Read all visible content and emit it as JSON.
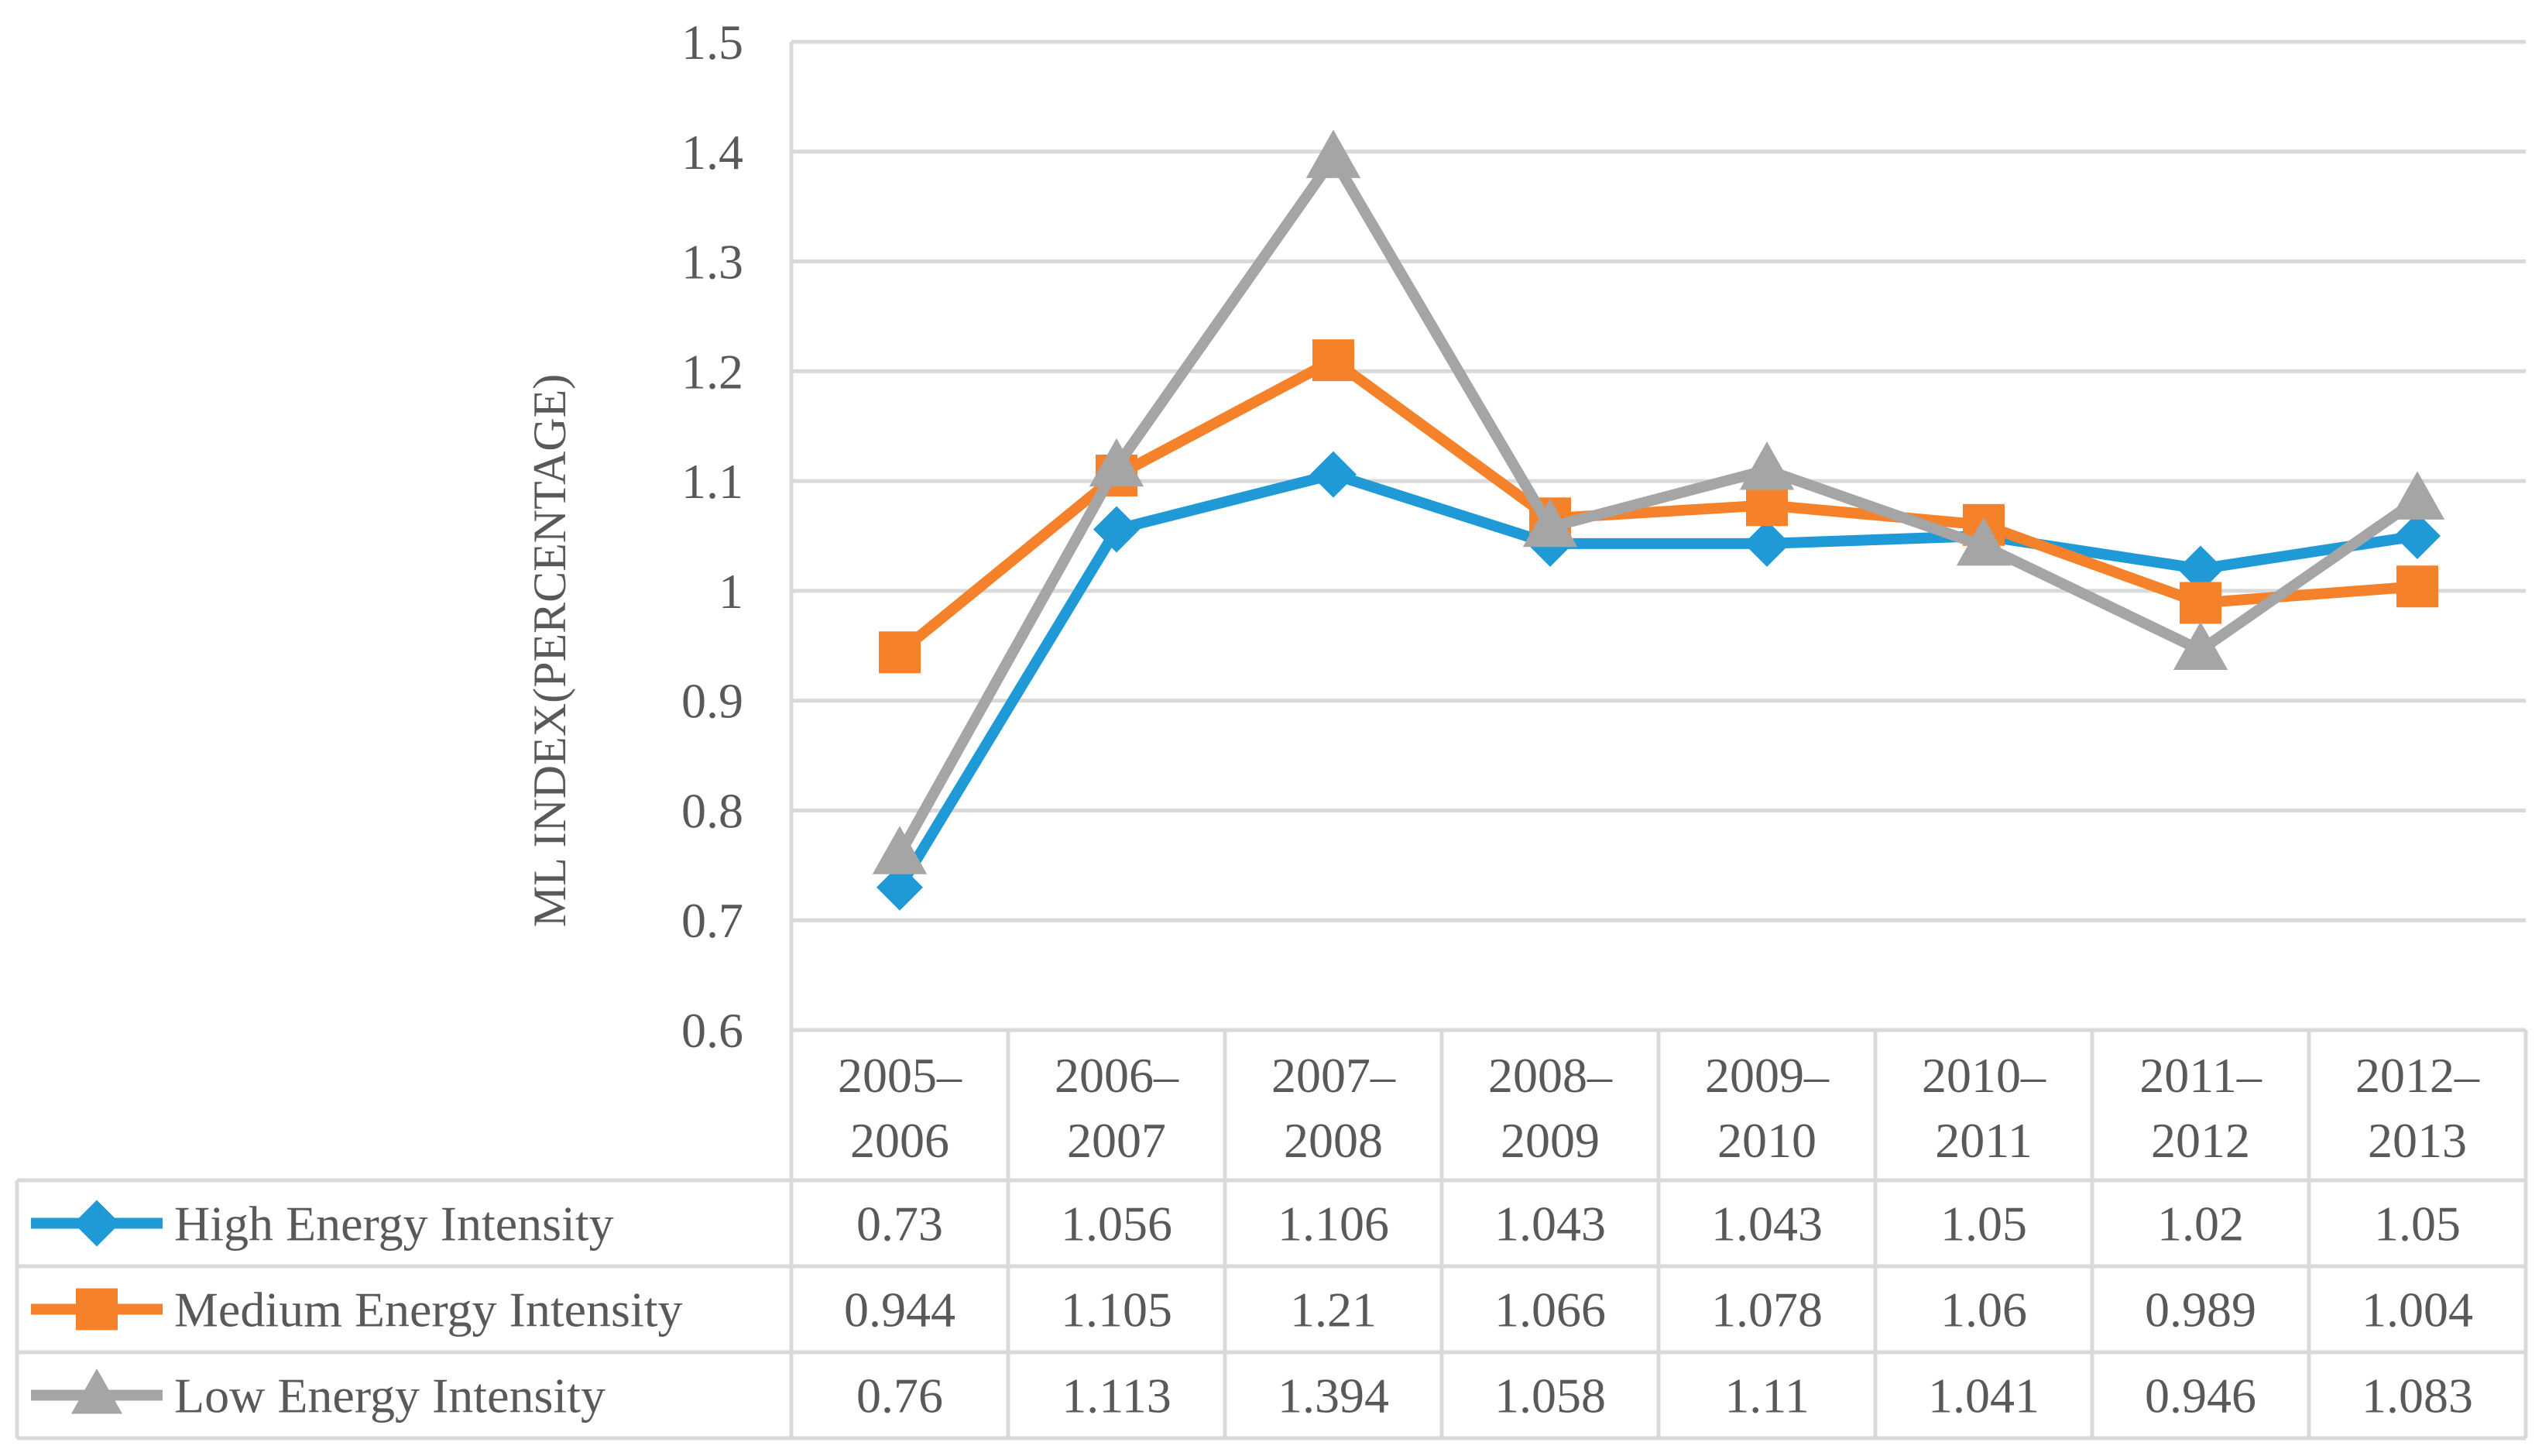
{
  "chart_data": {
    "type": "line",
    "title": "",
    "xlabel": "",
    "ylabel": "ML INDEX(PERCENTAGE)",
    "ylim": [
      0.6,
      1.5
    ],
    "yticks": [
      "0.6",
      "0.7",
      "0.8",
      "0.9",
      "1",
      "1.1",
      "1.2",
      "1.3",
      "1.4",
      "1.5"
    ],
    "grid": true,
    "legend": "data-table-left",
    "categories": [
      [
        "2005–",
        "2006"
      ],
      [
        "2006–",
        "2007"
      ],
      [
        "2007–",
        "2008"
      ],
      [
        "2008–",
        "2009"
      ],
      [
        "2009–",
        "2010"
      ],
      [
        "2010–",
        "2011"
      ],
      [
        "2011–",
        "2012"
      ],
      [
        "2012–",
        "2013"
      ]
    ],
    "series": [
      {
        "name": "High Energy Intensity",
        "color": "#1f9ad6",
        "marker": "diamond",
        "values": [
          0.73,
          1.056,
          1.106,
          1.043,
          1.043,
          1.05,
          1.02,
          1.05
        ],
        "labels": [
          "0.73",
          "1.056",
          "1.106",
          "1.043",
          "1.043",
          "1.05",
          "1.02",
          "1.05"
        ]
      },
      {
        "name": "Medium Energy Intensity",
        "color": "#f5822a",
        "marker": "square",
        "values": [
          0.944,
          1.105,
          1.21,
          1.066,
          1.078,
          1.06,
          0.989,
          1.004
        ],
        "labels": [
          "0.944",
          "1.105",
          "1.21",
          "1.066",
          "1.078",
          "1.06",
          "0.989",
          "1.004"
        ]
      },
      {
        "name": "Low Energy Intensity",
        "color": "#a5a5a5",
        "marker": "triangle",
        "values": [
          0.76,
          1.113,
          1.394,
          1.058,
          1.11,
          1.041,
          0.946,
          1.083
        ],
        "labels": [
          "0.76",
          "1.113",
          "1.394",
          "1.058",
          "1.11",
          "1.041",
          "0.946",
          "1.083"
        ]
      }
    ]
  }
}
